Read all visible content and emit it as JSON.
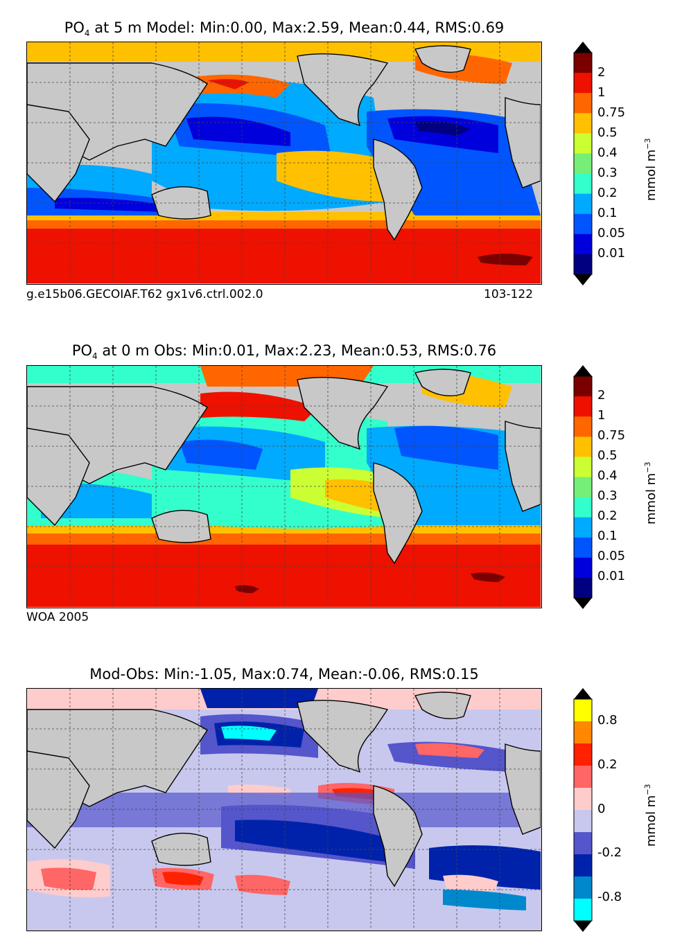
{
  "panels": [
    {
      "title_prefix": "PO",
      "title_sub": "4",
      "title_rest": " at 5 m Model: Min:0.00, Max:2.59, Mean:0.44, RMS:0.69",
      "caption_left": "g.e15b06.GECOIAF.T62 gx1v6.ctrl.002.0",
      "caption_right": "103-122",
      "unit": "mmol m",
      "unit_sup": "−3",
      "colorbar": {
        "ticks": [
          "2",
          "1",
          "0.75",
          "0.5",
          "0.4",
          "0.3",
          "0.2",
          "0.1",
          "0.05",
          "0.01"
        ],
        "colors": [
          "#7a0000",
          "#ee1100",
          "#ff6600",
          "#ffc000",
          "#ccff33",
          "#77ee77",
          "#33ffcc",
          "#00aaff",
          "#0055ff",
          "#0000dd",
          "#000080"
        ]
      }
    },
    {
      "title_prefix": "PO",
      "title_sub": "4",
      "title_rest": " at 0 m Obs: Min:0.01, Max:2.23, Mean:0.53, RMS:0.76",
      "caption_left": "WOA 2005",
      "caption_right": "",
      "unit": "mmol m",
      "unit_sup": "−3",
      "colorbar": {
        "ticks": [
          "2",
          "1",
          "0.75",
          "0.5",
          "0.4",
          "0.3",
          "0.2",
          "0.1",
          "0.05",
          "0.01"
        ],
        "colors": [
          "#7a0000",
          "#ee1100",
          "#ff6600",
          "#ffc000",
          "#ccff33",
          "#77ee77",
          "#33ffcc",
          "#00aaff",
          "#0055ff",
          "#0000dd",
          "#000080"
        ]
      }
    },
    {
      "title_prefix": "",
      "title_sub": "",
      "title_rest": "Mod-Obs: Min:-1.05, Max:0.74, Mean:-0.06, RMS:0.15",
      "caption_left": "",
      "caption_right": "",
      "unit": "mmol m",
      "unit_sup": "−3",
      "colorbar": {
        "ticks": [
          "0.8",
          "0.2",
          "0",
          "-0.2",
          "-0.8"
        ],
        "colors": [
          "#ffff00",
          "#ff8800",
          "#ff2200",
          "#ff6666",
          "#ffcccc",
          "#c8c8ee",
          "#5555cc",
          "#0022aa",
          "#0088cc",
          "#00ffff"
        ]
      }
    }
  ]
}
